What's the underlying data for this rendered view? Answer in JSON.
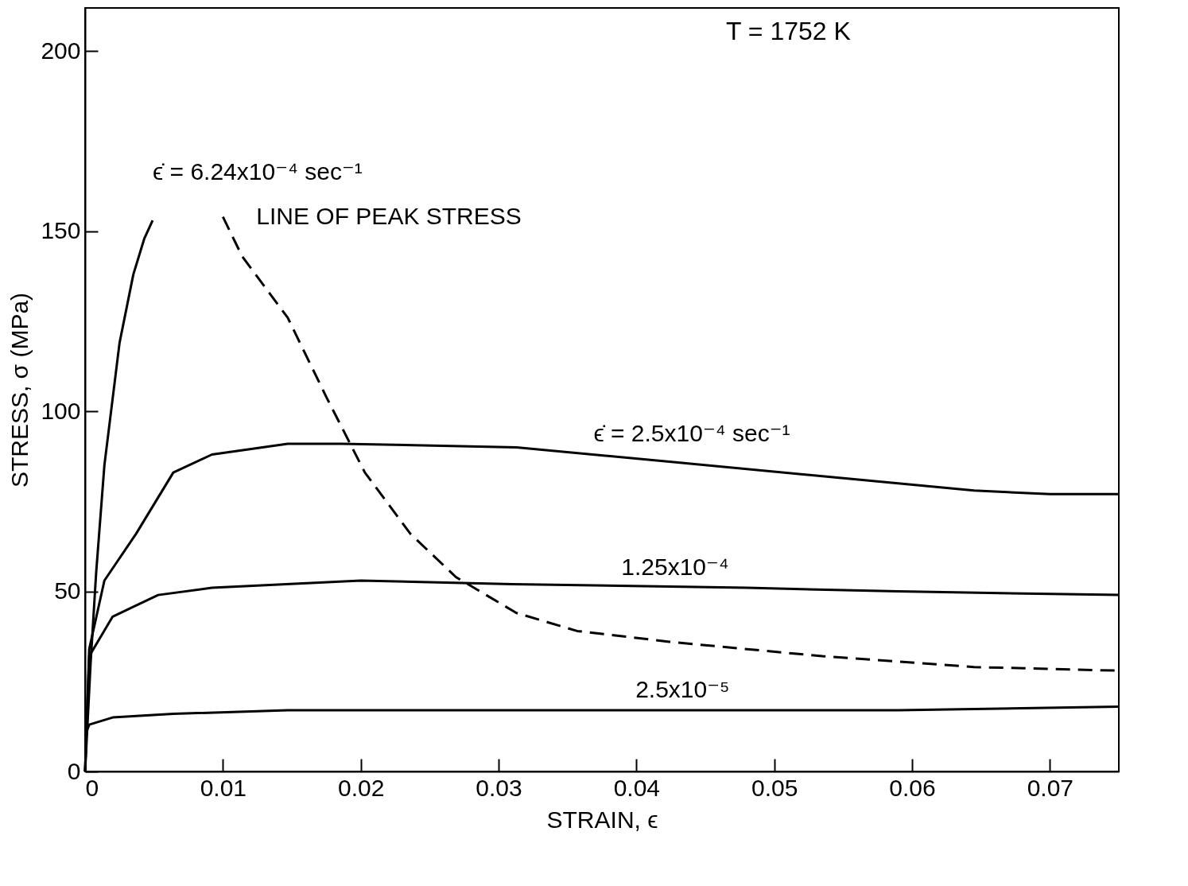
{
  "chart_data": {
    "type": "line",
    "xlabel": "STRAIN, ϵ",
    "ylabel": "STRESS, σ (MPa)",
    "xlim": [
      0,
      0.075
    ],
    "ylim": [
      0,
      212
    ],
    "xticks": [
      0,
      0.01,
      0.02,
      0.03,
      0.04,
      0.05,
      0.06,
      0.07
    ],
    "yticks": [
      0,
      50,
      100,
      150,
      200
    ],
    "grid": false,
    "legend": false,
    "marker": "none",
    "line_style": "solid",
    "annotations": [
      "T = 1752 K"
    ],
    "series": [
      {
        "name": "ϵ̇ = 6.24x10⁻⁴ sec⁻¹",
        "color": "#000000",
        "x": [
          0,
          0.0004,
          0.0008,
          0.0014,
          0.0025,
          0.0035,
          0.0043,
          0.0049
        ],
        "values": [
          0,
          30,
          55,
          85,
          119,
          138,
          148,
          153
        ]
      },
      {
        "name": "ϵ̇ = 2.5x10⁻⁴ sec⁻¹",
        "color": "#000000",
        "x": [
          0,
          0.0003,
          0.0014,
          0.0037,
          0.0064,
          0.0092,
          0.0147,
          0.0186,
          0.0313,
          0.0424,
          0.0535,
          0.0645,
          0.07,
          0.075
        ],
        "values": [
          0,
          34,
          53,
          66,
          83,
          88,
          91,
          91,
          90,
          86,
          82,
          78,
          77,
          77
        ]
      },
      {
        "name": "1.25x10⁻⁴",
        "color": "#000000",
        "x": [
          0,
          0.0003,
          0.002,
          0.0053,
          0.0092,
          0.02,
          0.031,
          0.048,
          0.059,
          0.075
        ],
        "values": [
          0,
          32,
          43,
          49,
          51,
          53,
          52,
          51,
          50,
          49
        ]
      },
      {
        "name": "2.5x10⁻⁵",
        "color": "#000000",
        "x": [
          0,
          0.0003,
          0.002,
          0.0064,
          0.0147,
          0.037,
          0.059,
          0.075
        ],
        "values": [
          10,
          13,
          15,
          16,
          17,
          17,
          17,
          18
        ]
      },
      {
        "name": "LINE OF PEAK STRESS",
        "color": "#000000",
        "line_style": "dashed",
        "x": [
          0.01,
          0.0114,
          0.0147,
          0.0175,
          0.0203,
          0.0236,
          0.0269,
          0.0313,
          0.0357,
          0.0424,
          0.0535,
          0.0645,
          0.075
        ],
        "values": [
          154,
          143,
          126,
          104,
          83,
          66,
          54,
          44,
          39,
          36,
          32,
          29,
          28
        ]
      }
    ]
  }
}
